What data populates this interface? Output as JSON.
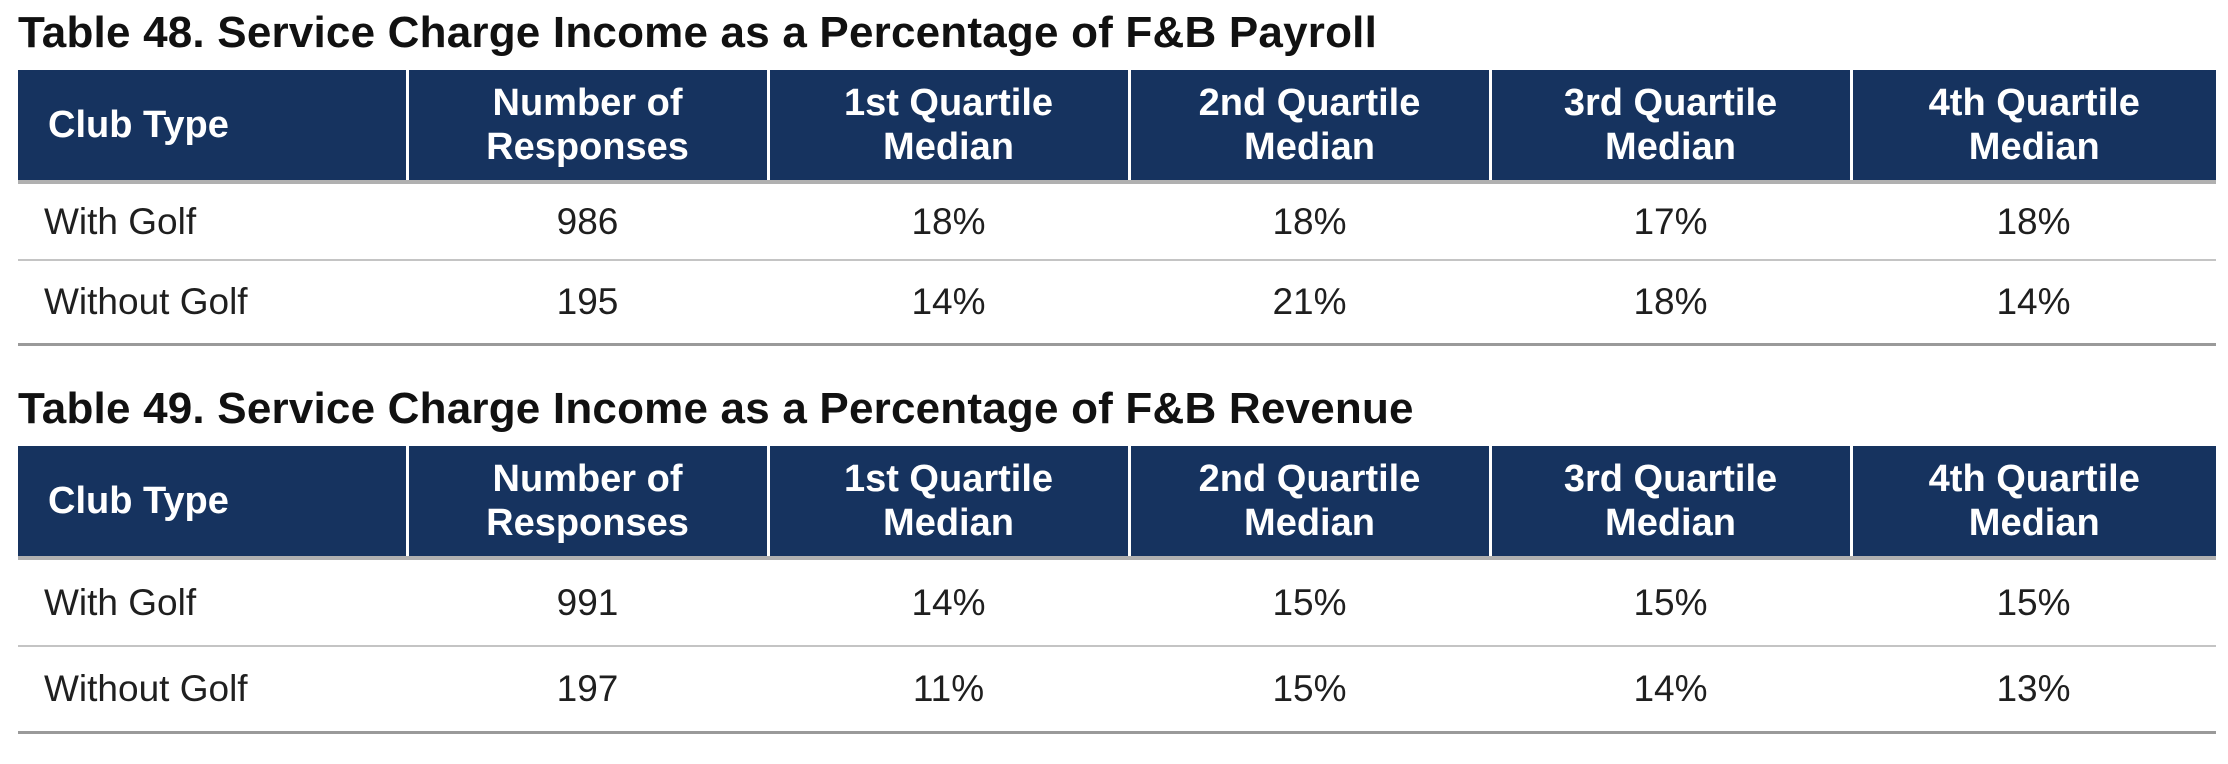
{
  "tables": [
    {
      "title": "Table 48. Service Charge Income as a Percentage of F&B Payroll",
      "headers": [
        [
          "Club Type"
        ],
        [
          "Number of",
          "Responses"
        ],
        [
          "1st Quartile",
          "Median"
        ],
        [
          "2nd Quartile",
          "Median"
        ],
        [
          "3rd Quartile",
          "Median"
        ],
        [
          "4th Quartile",
          "Median"
        ]
      ],
      "rows": [
        [
          "With Golf",
          "986",
          "18%",
          "18%",
          "17%",
          "18%"
        ],
        [
          "Without Golf",
          "195",
          "14%",
          "21%",
          "18%",
          "14%"
        ]
      ]
    },
    {
      "title": "Table 49. Service Charge Income as a Percentage of F&B Revenue",
      "headers": [
        [
          "Club Type"
        ],
        [
          "Number of",
          "Responses"
        ],
        [
          "1st Quartile",
          "Median"
        ],
        [
          "2nd Quartile",
          "Median"
        ],
        [
          "3rd Quartile",
          "Median"
        ],
        [
          "4th Quartile",
          "Median"
        ]
      ],
      "rows": [
        [
          "With Golf",
          "991",
          "14%",
          "15%",
          "15%",
          "15%"
        ],
        [
          "Without Golf",
          "197",
          "11%",
          "15%",
          "14%",
          "13%"
        ]
      ]
    }
  ],
  "colors": {
    "header_background": "#16335f",
    "header_text": "#ffffff",
    "rule": "#b0b0b0"
  }
}
